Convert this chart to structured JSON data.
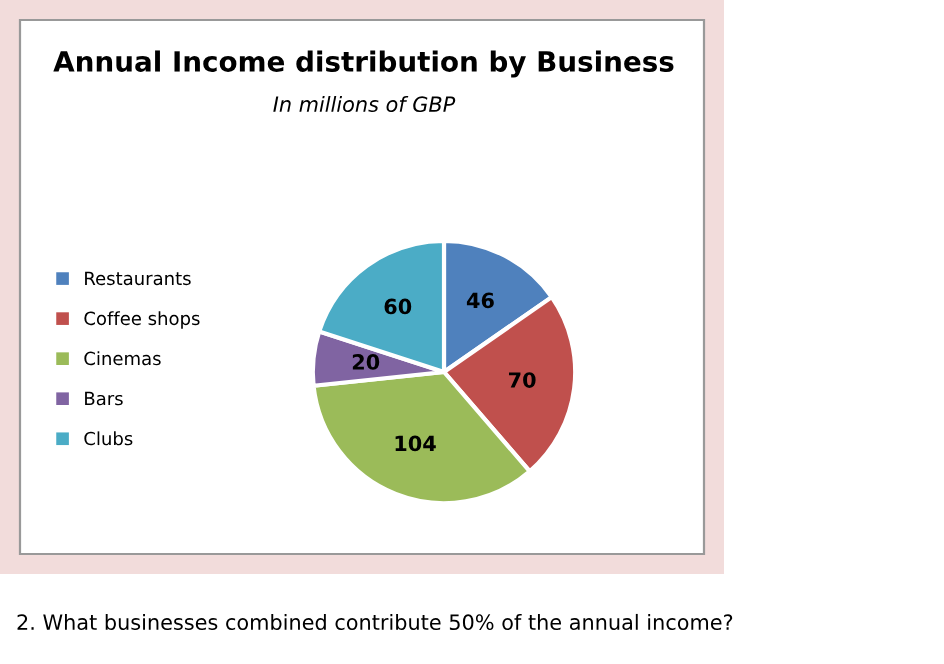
{
  "chart_data": {
    "type": "pie",
    "title": "Annual Income distribution by Business",
    "subtitle": "In millions of GBP",
    "categories": [
      "Restaurants",
      "Coffee shops",
      "Cinemas",
      "Bars",
      "Clubs"
    ],
    "values": [
      46,
      70,
      104,
      20,
      60
    ],
    "colors": [
      "#4f81bd",
      "#c0504d",
      "#9bbb59",
      "#8064a2",
      "#4bacc6"
    ],
    "data_labels": true,
    "legend": "left",
    "annotations": [
      "2. What businesses combined contribute 50% of the annual income?"
    ]
  }
}
